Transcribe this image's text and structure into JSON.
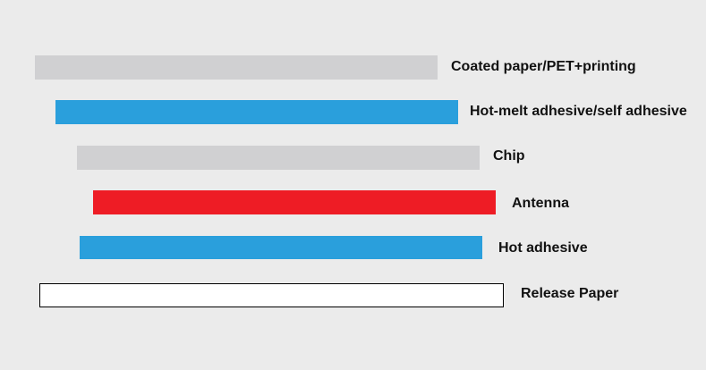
{
  "layers": [
    {
      "label": "Coated paper/PET+printing"
    },
    {
      "label": "Hot-melt adhesive/self adhesive"
    },
    {
      "label": "Chip"
    },
    {
      "label": "Antenna"
    },
    {
      "label": "Hot adhesive"
    },
    {
      "label": "Release Paper"
    }
  ]
}
